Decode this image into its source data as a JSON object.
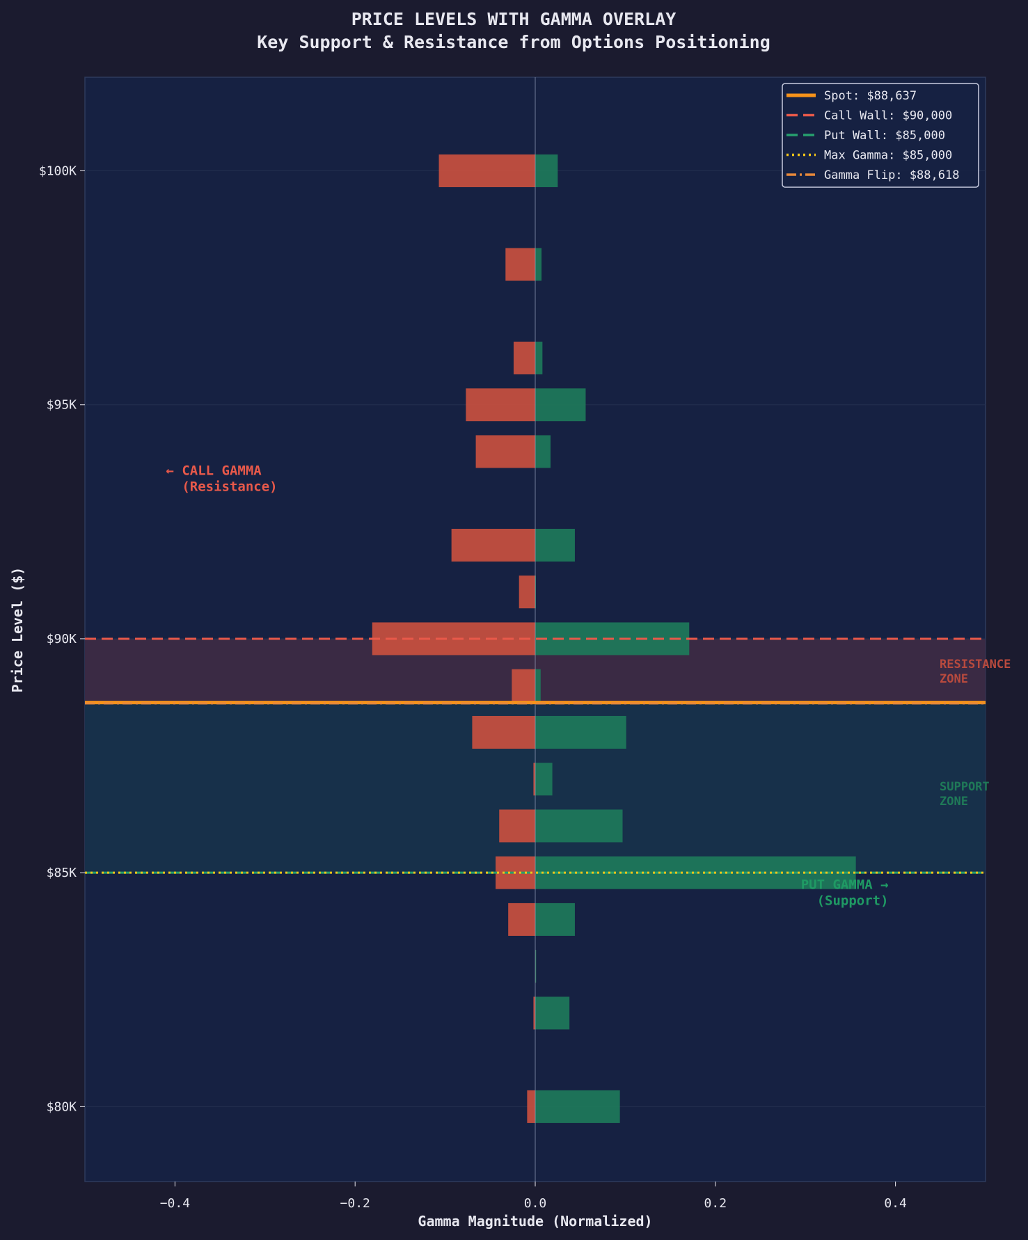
{
  "chart_data": {
    "type": "bar",
    "orientation": "horizontal",
    "title": "PRICE LEVELS WITH GAMMA OVERLAY",
    "subtitle": "Key Support & Resistance from Options Positioning",
    "xlabel": "Gamma Magnitude (Normalized)",
    "ylabel": "Price Level ($)",
    "xlim": [
      -0.5,
      0.5
    ],
    "ylim": [
      78400,
      102000
    ],
    "x_ticks": [
      -0.4,
      -0.2,
      0.0,
      0.2,
      0.4
    ],
    "x_tick_labels": [
      "−0.4",
      "−0.2",
      "0.0",
      "0.2",
      "0.4"
    ],
    "y_ticks": [
      80000,
      85000,
      90000,
      95000,
      100000
    ],
    "y_tick_labels": [
      "$80K",
      "$85K",
      "$90K",
      "$95K",
      "$100K"
    ],
    "grid": false,
    "categories": [
      100000,
      98000,
      96000,
      95000,
      94000,
      92000,
      91000,
      90000,
      89000,
      88000,
      87000,
      86000,
      85000,
      84000,
      83000,
      82000,
      80000
    ],
    "series": [
      {
        "key": "call",
        "color": "#c9503f",
        "values": [
          -0.107,
          -0.033,
          -0.024,
          -0.077,
          -0.066,
          -0.093,
          -0.018,
          -0.181,
          -0.026,
          -0.07,
          -0.002,
          -0.04,
          -0.044,
          -0.03,
          0.0,
          -0.002,
          -0.009
        ]
      },
      {
        "key": "put",
        "color": "#1e7a5a",
        "values": [
          0.025,
          0.007,
          0.008,
          0.056,
          0.017,
          0.044,
          0.0,
          0.171,
          0.006,
          0.101,
          0.019,
          0.097,
          0.356,
          0.044,
          0.001,
          0.038,
          0.094
        ]
      }
    ],
    "reference_lines": [
      {
        "label": "Spot: $88,637",
        "value": 88637,
        "color": "#f7931a",
        "style": "solid"
      },
      {
        "label": "Call Wall: $90,000",
        "value": 90000,
        "color": "#e8594a",
        "style": "dashed"
      },
      {
        "label": "Put Wall: $85,000",
        "value": 85000,
        "color": "#26a06e",
        "style": "dashed"
      },
      {
        "label": "Max Gamma: $85,000",
        "value": 85000,
        "color": "#f5c518",
        "style": "dotted"
      },
      {
        "label": "Gamma Flip: $88,618",
        "value": 88618,
        "color": "#e8893a",
        "style": "dashdot"
      }
    ],
    "zones": [
      {
        "label_lines": [
          "RESISTANCE",
          "ZONE"
        ],
        "from": 88637,
        "to": 90000,
        "color": "#3a2a44",
        "text_color": "#b84a3e"
      },
      {
        "label_lines": [
          "SUPPORT",
          "ZONE"
        ],
        "from": 85000,
        "to": 88637,
        "color": "#17304a",
        "text_color": "#1f7a58"
      }
    ],
    "annotations": [
      {
        "lines": [
          "← CALL GAMMA",
          "  (Resistance)"
        ],
        "x": -0.41,
        "y": 93500,
        "color": "#e8594a"
      },
      {
        "lines": [
          "PUT GAMMA →",
          "  (Support)"
        ],
        "x": 0.295,
        "y": 84650,
        "color": "#1f9a64"
      }
    ],
    "legend_position": "top-right",
    "colors": {
      "background": "#1b1b2f",
      "plot_background": "#162142",
      "text": "#e8e8f0"
    }
  }
}
